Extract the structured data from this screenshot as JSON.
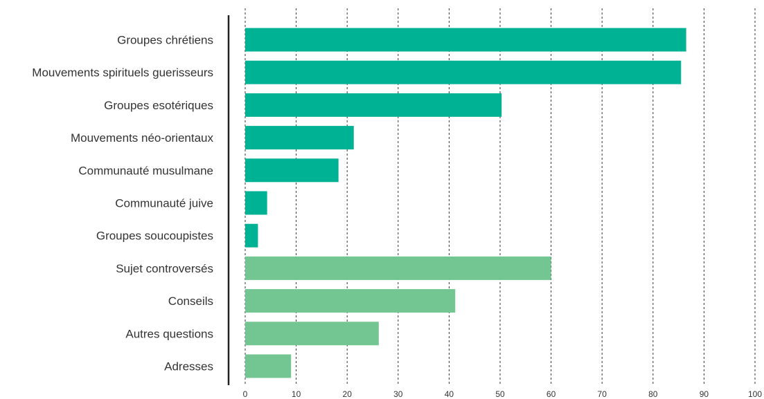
{
  "chart_data": {
    "type": "bar",
    "orientation": "horizontal",
    "categories": [
      "Groupes chrétiens",
      "Mouvements spirituels guerisseurs",
      "Groupes esotériques",
      "Mouvements néo-orientaux",
      "Communauté musulmane",
      "Communauté juive",
      "Groupes soucoupistes",
      "Sujet controversés",
      "Conseils",
      "Autres questions",
      "Adresses"
    ],
    "values": [
      86.5,
      85.5,
      50.3,
      21.3,
      18.3,
      4.3,
      2.5,
      60.0,
      41.2,
      26.2,
      9.0
    ],
    "groups": [
      0,
      0,
      0,
      0,
      0,
      0,
      0,
      1,
      1,
      1,
      1
    ],
    "group_colors": [
      "#00b294",
      "#73c691"
    ],
    "xlim": [
      0,
      100
    ],
    "xticks": [
      "0",
      "10",
      "20",
      "30",
      "40",
      "50",
      "60",
      "70",
      "80",
      "90",
      "100"
    ],
    "grid": "vertical-dashed",
    "title": "",
    "xlabel": "",
    "ylabel": ""
  }
}
